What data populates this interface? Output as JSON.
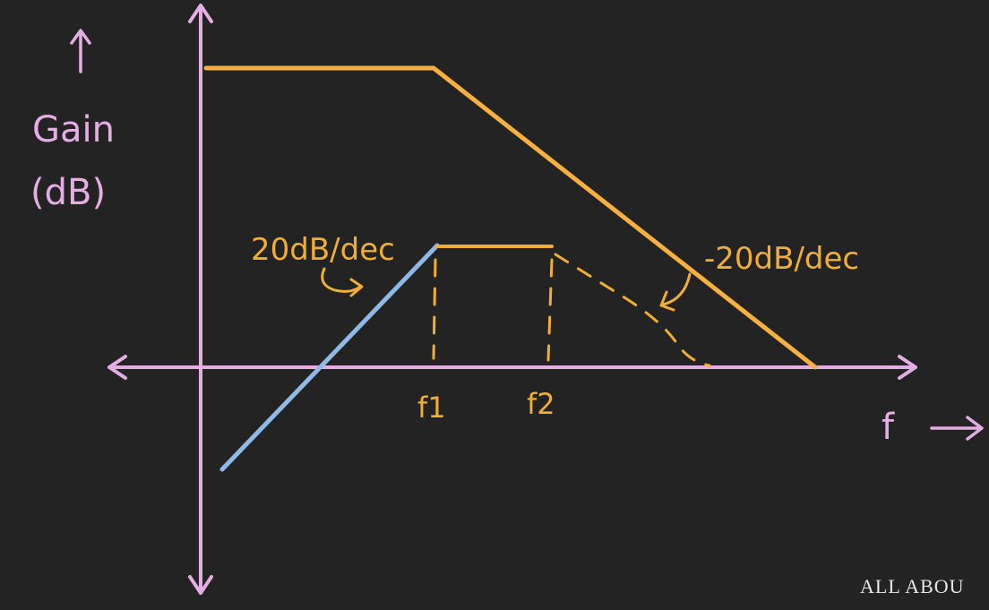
{
  "colors": {
    "background": "#232323",
    "axes": "#e4aee3",
    "gain_curve": "#f6b041",
    "rising_line": "#8fb9e6",
    "annotation": "#f1ae36",
    "watermark": "#e6e6e6"
  },
  "axis_labels": {
    "y_line1": "Gain",
    "y_line2": "(dB)",
    "x": "f"
  },
  "annotations": {
    "rising_slope": "20dB/dec",
    "falling_slope": "-20dB/dec"
  },
  "markers": {
    "f1": "f1",
    "f2": "f2"
  },
  "watermark": "ALL ABOU"
}
